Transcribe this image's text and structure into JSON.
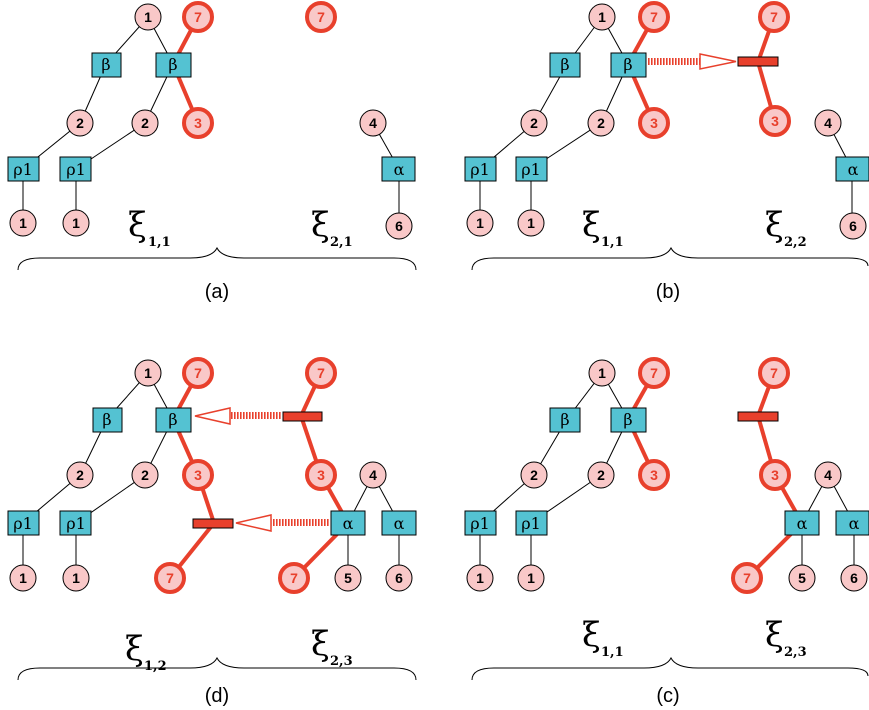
{
  "colors": {
    "node_fill": "#f9c8c8",
    "box_fill": "#54c2d2",
    "red": "#e8402c",
    "black": "#000000"
  },
  "glyphs": {
    "xi": "ξ"
  },
  "panels": {
    "a": {
      "caption": "(a)",
      "left_label_sub": "1,1",
      "right_label_sub": "2,1",
      "node_labels": [
        "1",
        "2",
        "2",
        "1",
        "1",
        "7",
        "3",
        "7",
        "4",
        "6"
      ],
      "box_labels": [
        "β",
        "β",
        "ρ1",
        "ρ1",
        "α"
      ]
    },
    "b": {
      "caption": "(b)",
      "left_label_sub": "1,1",
      "right_label_sub": "2,2",
      "node_labels": [
        "1",
        "2",
        "2",
        "1",
        "1",
        "7",
        "3",
        "7",
        "3",
        "4",
        "6"
      ],
      "box_labels": [
        "β",
        "β",
        "ρ1",
        "ρ1",
        "α"
      ]
    },
    "d": {
      "caption": "(d)",
      "left_label_sub": "1,2",
      "right_label_sub": "2,3",
      "node_labels": [
        "1",
        "2",
        "2",
        "1",
        "1",
        "7",
        "3",
        "7",
        "7",
        "3",
        "7",
        "4",
        "5",
        "6"
      ],
      "box_labels": [
        "β",
        "β",
        "ρ1",
        "ρ1",
        "α",
        "α"
      ]
    },
    "c": {
      "caption": "(c)",
      "left_label_sub": "1,1",
      "right_label_sub": "2,3",
      "node_labels": [
        "1",
        "2",
        "2",
        "1",
        "1",
        "7",
        "3",
        "7",
        "3",
        "7",
        "4",
        "5",
        "6"
      ],
      "box_labels": [
        "β",
        "β",
        "ρ1",
        "ρ1",
        "α",
        "α"
      ]
    }
  }
}
